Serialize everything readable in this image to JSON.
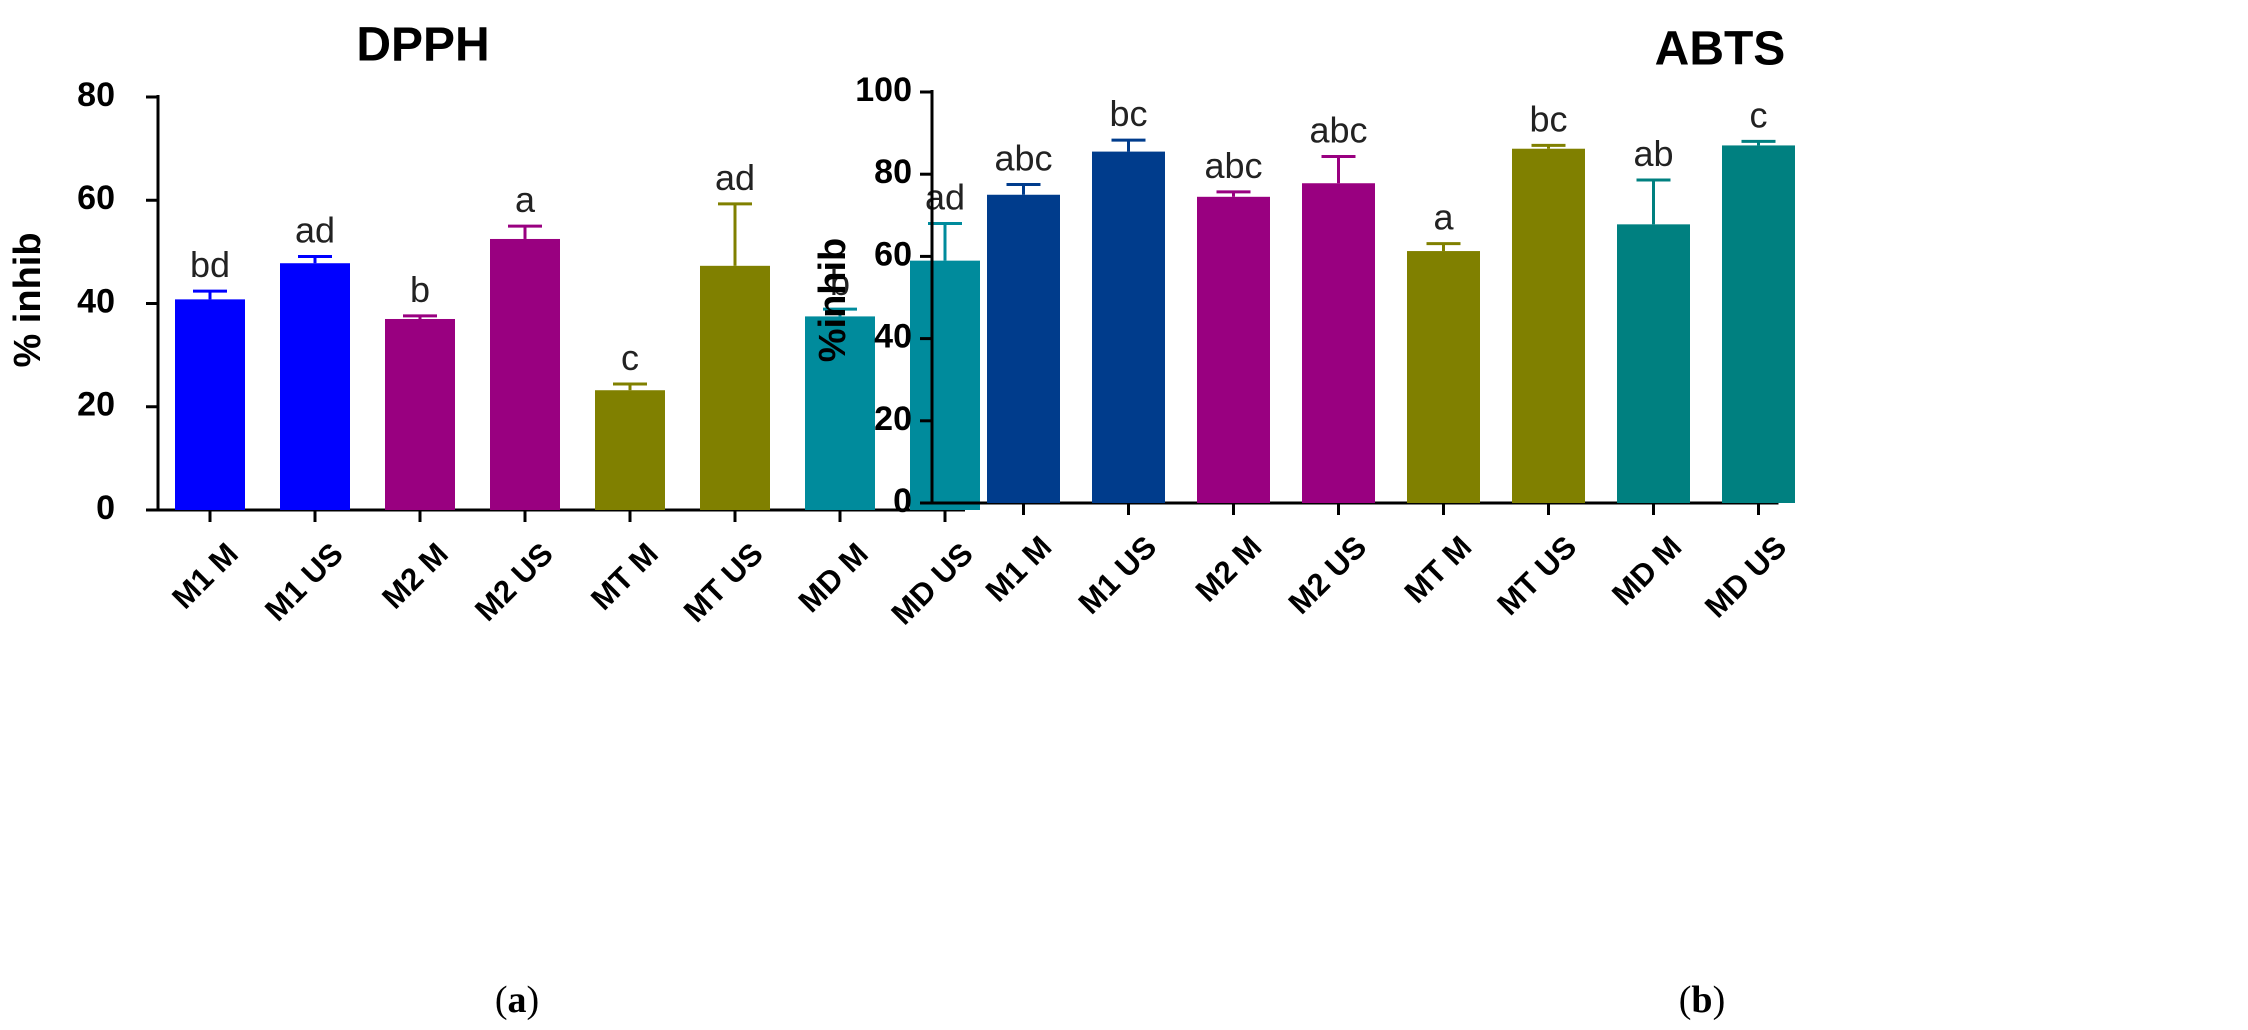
{
  "chart_data": [
    {
      "type": "bar",
      "panel": "(a)",
      "title": "DPPH",
      "ylabel": "% inhib",
      "ylim": [
        0,
        80
      ],
      "yticks": [
        0,
        20,
        40,
        60,
        80
      ],
      "categories": [
        "M1 M",
        "M1 US",
        "M2 M",
        "M2 US",
        "MT M",
        "MT US",
        "MD M",
        "MD US"
      ],
      "values": [
        40.8,
        47.8,
        37.0,
        52.5,
        23.2,
        47.3,
        37.5,
        48.3
      ],
      "errors": [
        1.6,
        1.3,
        0.6,
        2.5,
        1.2,
        12.0,
        1.4,
        7.2
      ],
      "labels": [
        "bd",
        "ad",
        "b",
        "a",
        "c",
        "ad",
        "b",
        "ad"
      ],
      "colors": [
        "#0000ff",
        "#0000ff",
        "#990080",
        "#990080",
        "#808000",
        "#808000",
        "#008b9c",
        "#008b9c"
      ]
    },
    {
      "type": "bar",
      "panel": "(b)",
      "title": "ABTS",
      "ylabel": "%inhib",
      "ylim": [
        0,
        100
      ],
      "yticks": [
        0,
        20,
        40,
        60,
        80,
        100
      ],
      "categories": [
        "M1 M",
        "M1 US",
        "M2 M",
        "M2 US",
        "MT M",
        "MT US",
        "MD M",
        "MD US"
      ],
      "values": [
        75.0,
        85.5,
        74.5,
        77.8,
        61.3,
        86.2,
        67.8,
        87.0
      ],
      "errors": [
        2.5,
        2.8,
        1.2,
        6.5,
        1.8,
        0.8,
        10.8,
        1.0
      ],
      "labels": [
        "abc",
        "bc",
        "abc",
        "abc",
        "a",
        "bc",
        "ab",
        "c"
      ],
      "colors": [
        "#003c8c",
        "#003c8c",
        "#990080",
        "#990080",
        "#808000",
        "#808000",
        "#008080",
        "#008080"
      ]
    }
  ],
  "captions": {
    "a": "a",
    "b": "b"
  }
}
